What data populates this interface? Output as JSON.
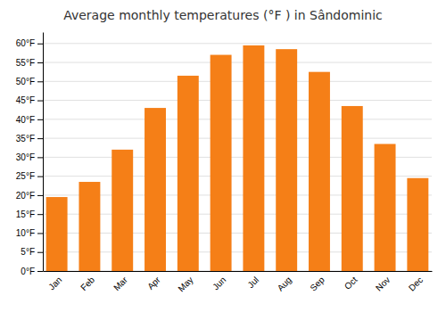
{
  "chart_data": {
    "type": "bar",
    "title": "Average monthly temperatures (°F ) in Sândominic",
    "categories": [
      "Jan",
      "Feb",
      "Mar",
      "Apr",
      "May",
      "Jun",
      "Jul",
      "Aug",
      "Sep",
      "Oct",
      "Nov",
      "Dec"
    ],
    "values": [
      19.5,
      23.5,
      32.0,
      43.0,
      51.5,
      57.0,
      59.5,
      58.5,
      52.5,
      43.5,
      33.5,
      24.5
    ],
    "color": "#F57F17",
    "ylim": [
      0,
      63
    ],
    "yticks": [
      {
        "value": 0,
        "label": "0°F"
      },
      {
        "value": 5,
        "label": "5°F"
      },
      {
        "value": 10,
        "label": "10°F"
      },
      {
        "value": 15,
        "label": "15°F"
      },
      {
        "value": 20,
        "label": "20°F"
      },
      {
        "value": 25,
        "label": "25°F"
      },
      {
        "value": 30,
        "label": "30°F"
      },
      {
        "value": 35,
        "label": "35°F"
      },
      {
        "value": 40,
        "label": "40°F"
      },
      {
        "value": 45,
        "label": "45°F"
      },
      {
        "value": 50,
        "label": "50°F"
      },
      {
        "value": 55,
        "label": "55°F"
      },
      {
        "value": 60,
        "label": "60°F"
      }
    ],
    "grid": true
  }
}
